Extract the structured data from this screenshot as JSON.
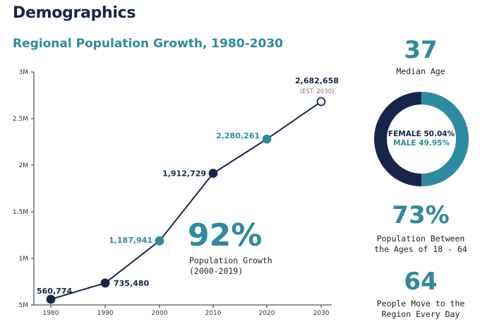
{
  "page": {
    "title": "Demographics"
  },
  "chart_data": {
    "type": "line",
    "title": "Regional Population Growth, 1980-2030",
    "x": [
      1980,
      1990,
      2000,
      2010,
      2020,
      2030
    ],
    "values": [
      560774,
      735480,
      1187941,
      1912729,
      2280261,
      2682658
    ],
    "value_labels": [
      "560,774",
      "735,480",
      "1,187,941",
      "1,912,729",
      "2,280,261",
      "2,682,658"
    ],
    "point_styles": [
      "dark",
      "dark",
      "teal",
      "dark",
      "teal",
      "open"
    ],
    "estimate_note": "(EST. 2030)",
    "ylim": [
      500000,
      3000000
    ],
    "yticks": [
      500000,
      1000000,
      1500000,
      2000000,
      2500000,
      3000000
    ],
    "ytick_labels": [
      ".5M",
      "1M",
      "1.5M",
      "2M",
      "2.5M",
      "3M"
    ],
    "xtick_labels": [
      "1980",
      "1990",
      "2000",
      "2010",
      "2020",
      "2030"
    ],
    "xlabel": "",
    "ylabel": "",
    "grid": false
  },
  "growth": {
    "value": "92%",
    "line1": "Population Growth",
    "line2": "(2000-2019)"
  },
  "median_age": {
    "value": "37",
    "label": "Median Age"
  },
  "gender": {
    "female_label": "FEMALE 50.04%",
    "male_label": "MALE 49.95%",
    "female_pct": 50.04,
    "male_pct": 49.95
  },
  "age_range": {
    "value": "73%",
    "line1": "Population Between",
    "line2": "the Ages of 18 - 64"
  },
  "movers": {
    "value": "64",
    "line1": "People Move to the",
    "line2": "Region Every Day"
  },
  "colors": {
    "navy": "#16264a",
    "teal": "#2e8aa0",
    "axis": "#1e2a4a"
  }
}
